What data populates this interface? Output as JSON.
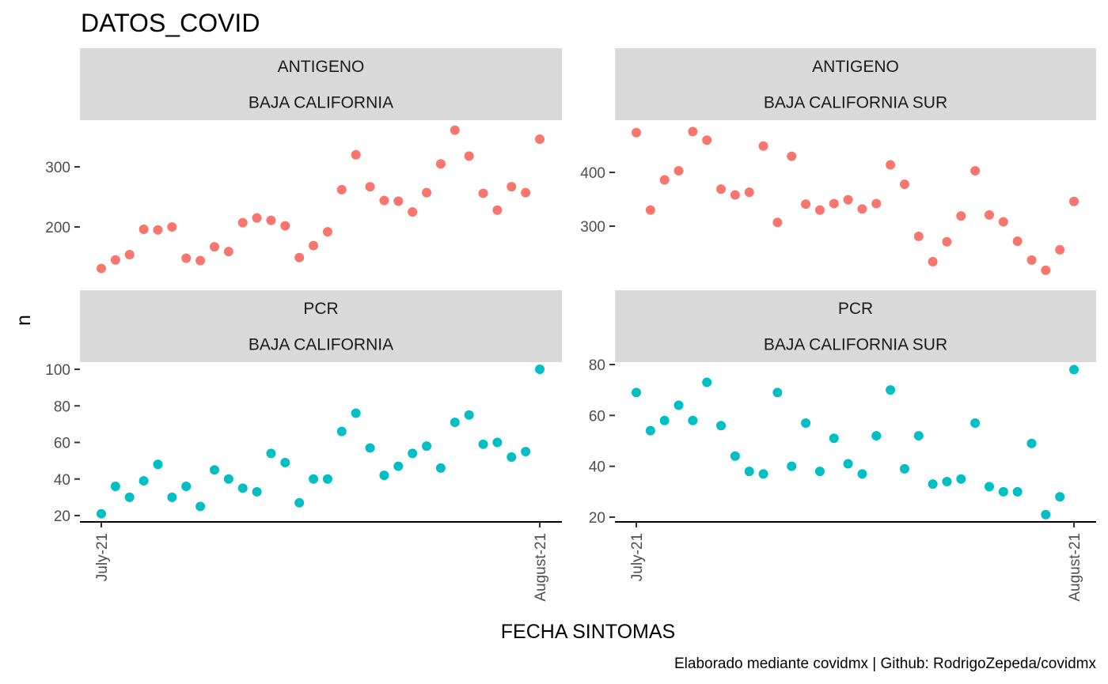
{
  "chart_data": {
    "type": "scatter",
    "title": "DATOS_COVID",
    "xlabel": "FECHA SINTOMAS",
    "ylabel": "n",
    "caption": "Elaborado mediante covidmx | Github: RodrigoZepeda/covidmx",
    "x_tick_labels": [
      "July-21",
      "August-21"
    ],
    "x_dates": [
      "2021-07-01",
      "2021-07-02",
      "2021-07-03",
      "2021-07-04",
      "2021-07-05",
      "2021-07-06",
      "2021-07-07",
      "2021-07-08",
      "2021-07-09",
      "2021-07-10",
      "2021-07-11",
      "2021-07-12",
      "2021-07-13",
      "2021-07-14",
      "2021-07-15",
      "2021-07-16",
      "2021-07-17",
      "2021-07-18",
      "2021-07-19",
      "2021-07-20",
      "2021-07-21",
      "2021-07-22",
      "2021-07-23",
      "2021-07-24",
      "2021-07-25",
      "2021-07-26",
      "2021-07-27",
      "2021-07-28",
      "2021-07-29",
      "2021-07-30",
      "2021-07-31",
      "2021-08-01"
    ],
    "colors": {
      "ANTIGENO": "#F8766D",
      "PCR": "#00BFC4"
    },
    "panels": [
      {
        "strip": [
          "ANTIGENO",
          "BAJA CALIFORNIA"
        ],
        "test": "ANTIGENO",
        "y_ticks": [
          200,
          300
        ],
        "y_range": [
          117,
          362
        ],
        "values": [
          131,
          145,
          154,
          196,
          195,
          200,
          148,
          144,
          167,
          159,
          207,
          215,
          211,
          202,
          149,
          169,
          192,
          262,
          320,
          267,
          244,
          243,
          225,
          257,
          305,
          361,
          318,
          256,
          228,
          267,
          257,
          346
        ]
      },
      {
        "strip": [
          "ANTIGENO",
          "BAJA CALIFORNIA SUR"
        ],
        "test": "ANTIGENO",
        "y_ticks": [
          300,
          400
        ],
        "y_range": [
          204,
          484
        ],
        "values": [
          474,
          330,
          386,
          403,
          476,
          460,
          369,
          358,
          363,
          449,
          307,
          430,
          341,
          330,
          342,
          349,
          332,
          342,
          414,
          378,
          281,
          234,
          271,
          319,
          403,
          321,
          308,
          272,
          237,
          218,
          256,
          346
        ]
      },
      {
        "strip": [
          "PCR",
          "BAJA CALIFORNIA"
        ],
        "test": "PCR",
        "y_ticks": [
          20,
          40,
          60,
          80,
          100
        ],
        "y_range": [
          17,
          100
        ],
        "values": [
          21,
          36,
          30,
          39,
          48,
          30,
          36,
          25,
          45,
          40,
          35,
          33,
          54,
          49,
          27,
          40,
          40,
          66,
          76,
          57,
          42,
          47,
          54,
          58,
          46,
          71,
          75,
          59,
          60,
          52,
          55,
          100
        ]
      },
      {
        "strip": [
          "PCR",
          "BAJA CALIFORNIA SUR"
        ],
        "test": "PCR",
        "y_ticks": [
          20,
          40,
          60,
          80
        ],
        "y_range": [
          17,
          80
        ],
        "values": [
          69,
          54,
          58,
          64,
          58,
          73,
          56,
          44,
          38,
          37,
          69,
          40,
          57,
          38,
          51,
          41,
          37,
          52,
          70,
          39,
          52,
          33,
          34,
          35,
          57,
          32,
          30,
          30,
          49,
          21,
          28,
          78
        ]
      }
    ]
  }
}
